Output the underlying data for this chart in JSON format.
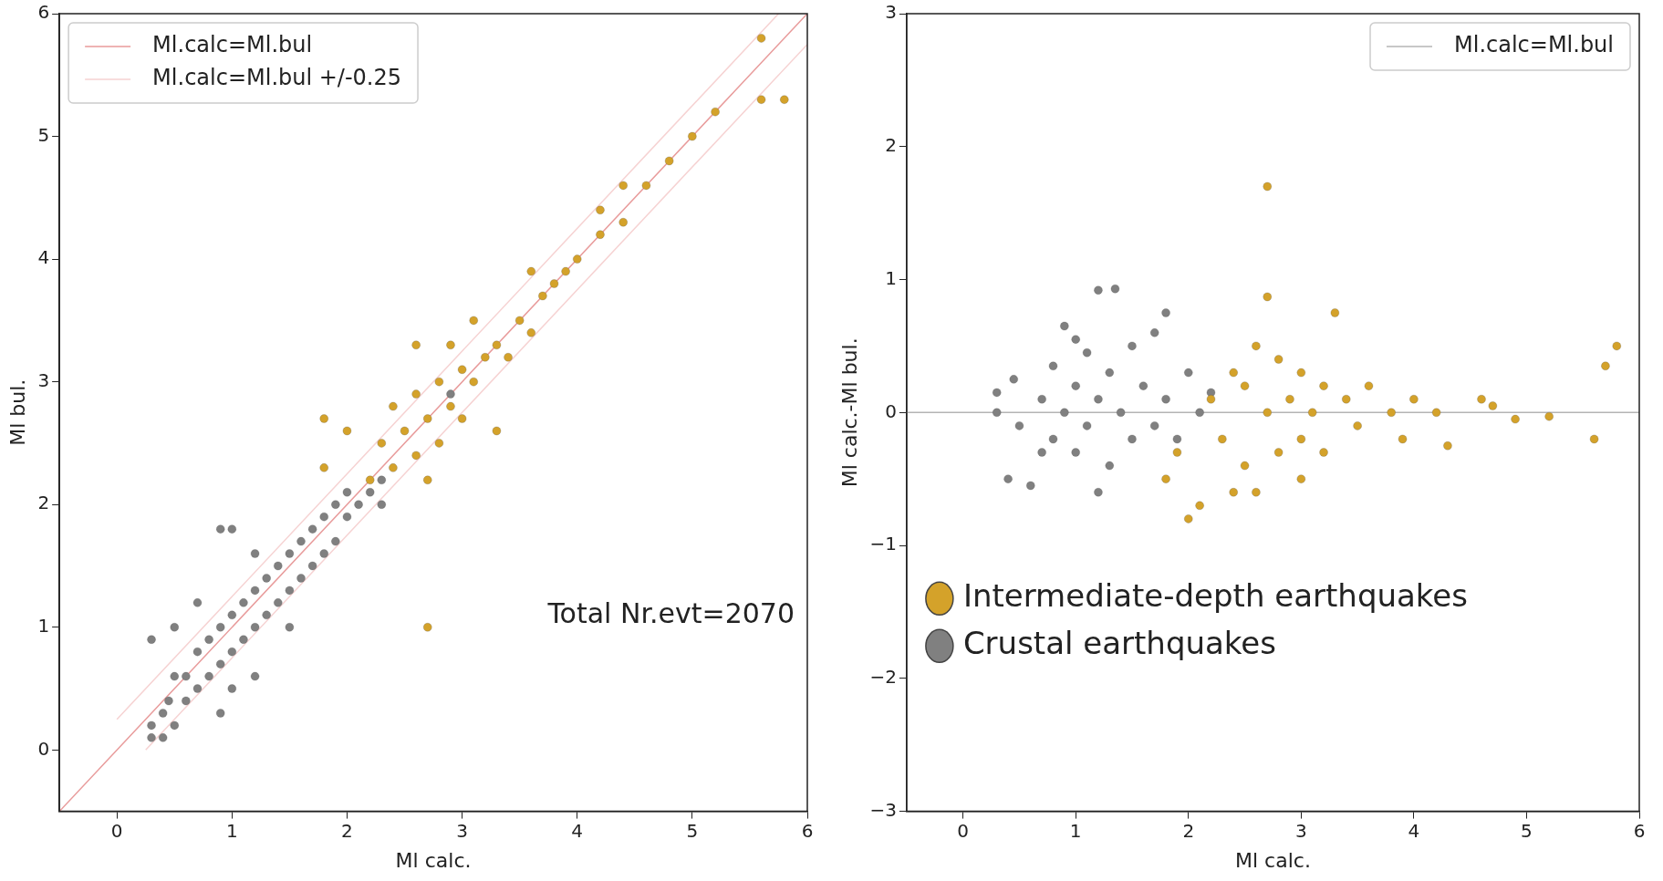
{
  "chart_data": [
    {
      "type": "scatter",
      "xlabel": "Ml calc.",
      "ylabel": "Ml bul.",
      "xlim": [
        -0.5,
        6
      ],
      "ylim": [
        -0.5,
        6
      ],
      "xticks": [
        0,
        1,
        2,
        3,
        4,
        5,
        6
      ],
      "yticks": [
        0,
        1,
        2,
        3,
        4,
        5,
        6
      ],
      "grid": false,
      "legend": "top left",
      "marker": "circle",
      "annotations": [
        "Total Nr.evt=2070"
      ],
      "series": [
        {
          "type": "line",
          "name": "Ml.calc=Ml.bul",
          "color": "#e89a9a",
          "marker": "none",
          "x": [
            -0.5,
            6
          ],
          "values": [
            -0.5,
            6
          ]
        },
        {
          "type": "line",
          "name": "Ml.calc=Ml.bul +/-0.25",
          "color": "#f6d2d2",
          "marker": "none",
          "x": [
            0,
            5.75
          ],
          "values": [
            0.25,
            6
          ]
        },
        {
          "type": "line",
          "color": "#f6d2d2",
          "marker": "none",
          "x": [
            0.25,
            6
          ],
          "values": [
            0,
            5.75
          ]
        },
        {
          "color": "#808080",
          "x": [
            0.3,
            0.3,
            0.4,
            0.4,
            0.45,
            0.5,
            0.5,
            0.6,
            0.6,
            0.7,
            0.7,
            0.8,
            0.8,
            0.9,
            0.9,
            1.0,
            1.0,
            1.0,
            1.1,
            1.1,
            1.2,
            1.2,
            1.2,
            1.3,
            1.3,
            1.4,
            1.4,
            1.5,
            1.5,
            1.6,
            1.6,
            1.7,
            1.7,
            1.8,
            1.8,
            1.9,
            1.9,
            2.0,
            2.0,
            2.1,
            2.2,
            2.3,
            2.3,
            0.9,
            1.0,
            0.7,
            0.5,
            0.3,
            0.9,
            1.2,
            1.5,
            2.9
          ],
          "values": [
            0.1,
            0.2,
            0.1,
            0.3,
            0.4,
            0.2,
            0.6,
            0.4,
            0.6,
            0.5,
            0.8,
            0.6,
            0.9,
            0.7,
            1.0,
            0.8,
            1.1,
            0.5,
            0.9,
            1.2,
            1.0,
            1.3,
            0.6,
            1.1,
            1.4,
            1.2,
            1.5,
            1.3,
            1.6,
            1.4,
            1.7,
            1.5,
            1.8,
            1.6,
            1.9,
            1.7,
            2.0,
            1.9,
            2.1,
            2.0,
            2.1,
            2.2,
            2.0,
            1.8,
            1.8,
            1.2,
            1.0,
            0.9,
            0.3,
            1.6,
            1.0,
            2.9
          ]
        },
        {
          "color": "#d4a22a",
          "x": [
            1.8,
            2.0,
            2.2,
            2.3,
            2.4,
            2.4,
            2.5,
            2.6,
            2.6,
            2.7,
            2.7,
            2.8,
            2.8,
            2.9,
            3.0,
            3.0,
            3.1,
            3.2,
            3.3,
            3.3,
            3.4,
            3.5,
            3.6,
            3.7,
            3.8,
            3.9,
            4.0,
            4.2,
            4.2,
            4.4,
            4.6,
            4.8,
            5.0,
            5.2,
            5.6,
            5.6,
            5.8,
            2.9,
            2.6,
            1.8,
            2.7,
            3.1,
            3.6,
            4.4
          ],
          "values": [
            2.3,
            2.6,
            2.2,
            2.5,
            2.3,
            2.8,
            2.6,
            2.4,
            2.9,
            2.7,
            1.0,
            2.5,
            3.0,
            2.8,
            2.7,
            3.1,
            3.0,
            3.2,
            2.6,
            3.3,
            3.2,
            3.5,
            3.4,
            3.7,
            3.8,
            3.9,
            4.0,
            4.2,
            4.4,
            4.3,
            4.6,
            4.8,
            5.0,
            5.2,
            5.8,
            5.3,
            5.3,
            3.3,
            3.3,
            2.7,
            2.2,
            3.5,
            3.9,
            4.6
          ]
        }
      ]
    },
    {
      "type": "scatter",
      "xlabel": "Ml calc.",
      "ylabel": "Ml calc.-Ml bul.",
      "xlim": [
        -0.5,
        6
      ],
      "ylim": [
        -3,
        3
      ],
      "xticks": [
        0,
        1,
        2,
        3,
        4,
        5,
        6
      ],
      "yticks": [
        {
          "value": -3,
          "label": "−3"
        },
        {
          "value": -2,
          "label": "−2"
        },
        {
          "value": -1,
          "label": "−1"
        },
        0,
        1,
        2,
        3
      ],
      "grid": false,
      "legend": "top right",
      "marker": "circle",
      "series": [
        {
          "type": "line",
          "name": "Ml.calc=Ml.bul",
          "color": "#b4b4b4",
          "marker": "none",
          "x": [
            -0.5,
            6
          ],
          "values": [
            0,
            0
          ]
        },
        {
          "name": "Intermediate-depth earthquakes",
          "color": "#d4a22a",
          "x": [
            1.8,
            1.9,
            2.0,
            2.1,
            2.2,
            2.3,
            2.4,
            2.5,
            2.5,
            2.6,
            2.6,
            2.7,
            2.7,
            2.7,
            2.8,
            2.8,
            2.9,
            3.0,
            3.0,
            3.1,
            3.2,
            3.2,
            3.3,
            3.4,
            3.5,
            3.6,
            3.8,
            3.9,
            4.0,
            4.2,
            4.3,
            4.6,
            4.7,
            4.9,
            5.2,
            5.6,
            5.7,
            5.8,
            2.4,
            3.0
          ],
          "values": [
            -0.5,
            -0.3,
            -0.8,
            -0.7,
            0.1,
            -0.2,
            0.3,
            -0.4,
            0.2,
            -0.6,
            0.5,
            1.7,
            0.87,
            0.0,
            -0.3,
            0.4,
            0.1,
            -0.2,
            0.3,
            0.0,
            -0.3,
            0.2,
            0.75,
            0.1,
            -0.1,
            0.2,
            0.0,
            -0.2,
            0.1,
            0.0,
            -0.25,
            0.1,
            0.05,
            -0.05,
            -0.03,
            -0.2,
            0.35,
            0.5,
            -0.6,
            -0.5
          ]
        },
        {
          "name": "Crustal earthquakes",
          "color": "#808080",
          "x": [
            0.3,
            0.3,
            0.4,
            0.45,
            0.5,
            0.6,
            0.7,
            0.7,
            0.8,
            0.8,
            0.9,
            0.9,
            1.0,
            1.0,
            1.1,
            1.1,
            1.2,
            1.2,
            1.3,
            1.3,
            1.35,
            1.4,
            1.5,
            1.5,
            1.6,
            1.7,
            1.7,
            1.8,
            1.8,
            1.9,
            2.0,
            2.1,
            2.2,
            1.2,
            1.0
          ],
          "values": [
            0.15,
            0.0,
            -0.5,
            0.25,
            -0.1,
            -0.55,
            0.1,
            -0.3,
            0.35,
            -0.2,
            0.65,
            0.0,
            -0.3,
            0.2,
            0.45,
            -0.1,
            0.92,
            0.1,
            -0.4,
            0.3,
            0.93,
            0.0,
            0.5,
            -0.2,
            0.2,
            0.6,
            -0.1,
            0.75,
            0.1,
            -0.2,
            0.3,
            0.0,
            0.15,
            -0.6,
            0.55
          ]
        }
      ]
    }
  ]
}
